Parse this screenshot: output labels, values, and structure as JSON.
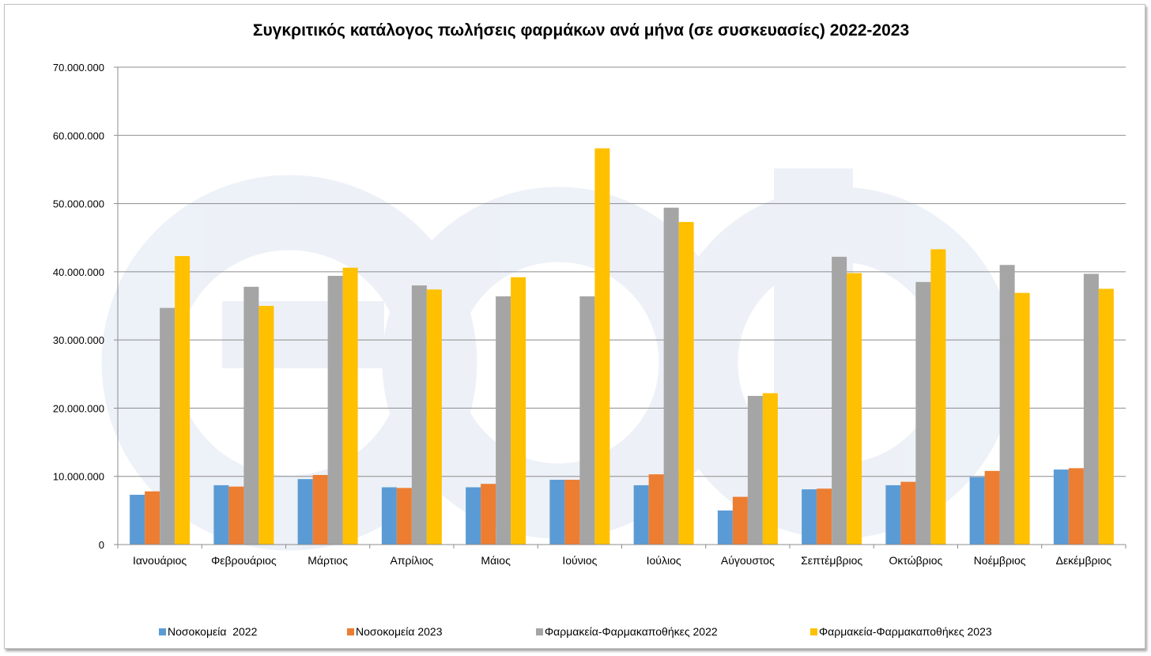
{
  "chart_data": {
    "type": "bar",
    "title": "Συγκριτικός κατάλογος πωλήσεις φαρμάκων ανά μήνα (σε συσκευασίες) 2022-2023",
    "xlabel": "",
    "ylabel": "",
    "ylim": [
      0,
      70000000
    ],
    "yticks": [
      0,
      10000000,
      20000000,
      30000000,
      40000000,
      50000000,
      60000000,
      70000000
    ],
    "ytick_labels": [
      "0",
      "10.000.000",
      "20.000.000",
      "30.000.000",
      "40.000.000",
      "50.000.000",
      "60.000.000",
      "70.000.000"
    ],
    "grid": true,
    "legend_position": "bottom",
    "categories": [
      "Ιανουάριος",
      "Φεβρουάριος",
      "Μάρτιος",
      "Απρίλιος",
      "Μάιος",
      "Ιούνιος",
      "Ιούλιος",
      "Αύγουστος",
      "Σεπτέμβριος",
      "Οκτώβριος",
      "Νοέμβριος",
      "Δεκέμβριος"
    ],
    "series": [
      {
        "name": "Νοσοκομεία  2022",
        "color": "#5b9bd5",
        "values": [
          7300000,
          8700000,
          9600000,
          8400000,
          8400000,
          9500000,
          8700000,
          5000000,
          8100000,
          8700000,
          9900000,
          11000000
        ]
      },
      {
        "name": "Νοσοκομεία 2023",
        "color": "#ed7d31",
        "values": [
          7800000,
          8500000,
          10200000,
          8300000,
          8900000,
          9500000,
          10300000,
          7000000,
          8200000,
          9200000,
          10800000,
          11200000
        ]
      },
      {
        "name": "Φαρμακεία-Φαρμακαποθήκες 2022",
        "color": "#a5a5a5",
        "values": [
          34700000,
          37800000,
          39400000,
          38000000,
          36400000,
          36400000,
          49400000,
          21800000,
          42200000,
          38500000,
          41000000,
          39700000
        ]
      },
      {
        "name": "Φαρμακεία-Φαρμακαποθήκες 2023",
        "color": "#ffc000",
        "values": [
          42300000,
          35000000,
          40600000,
          37400000,
          39200000,
          58100000,
          47300000,
          22200000,
          39800000,
          43300000,
          36900000,
          37500000
        ]
      }
    ]
  }
}
